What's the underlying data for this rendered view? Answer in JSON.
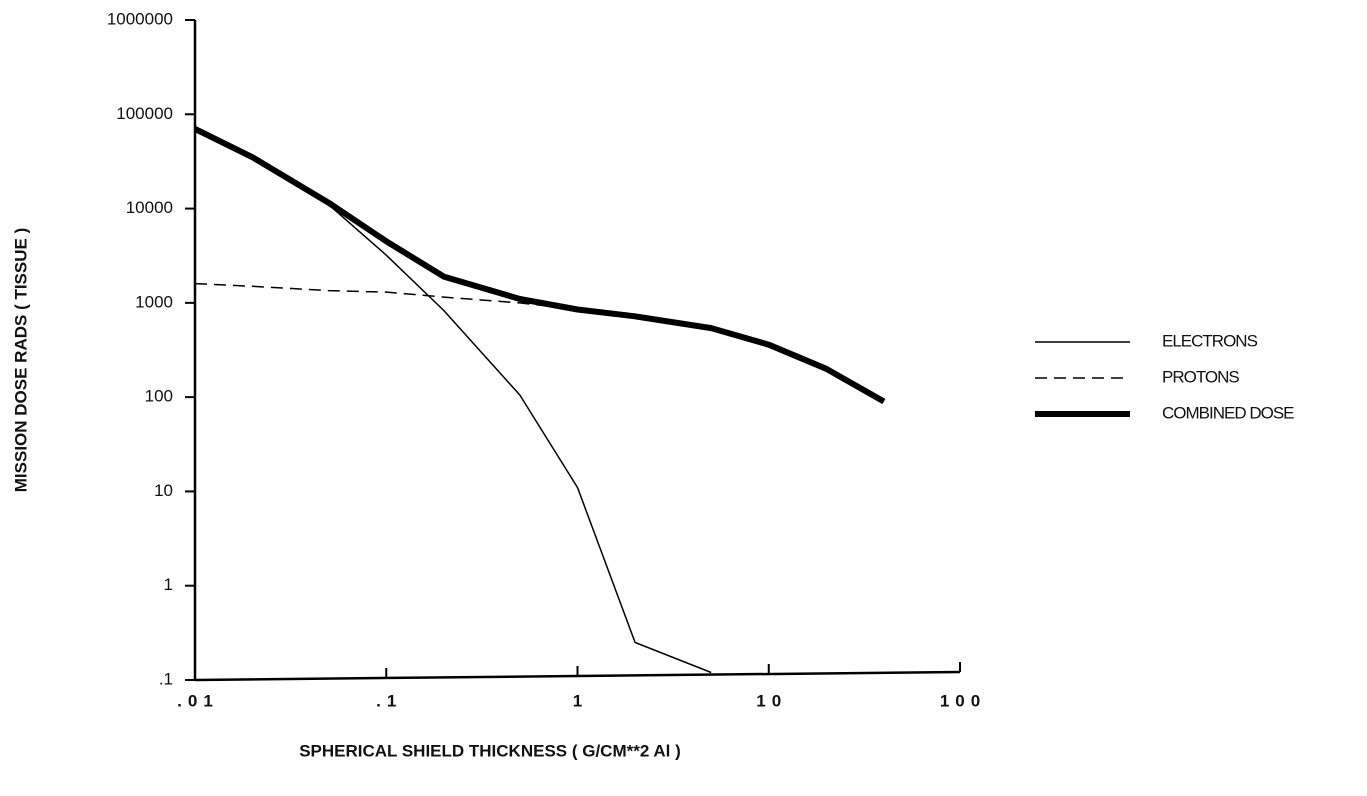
{
  "chart_data": {
    "type": "line",
    "xlabel": "SPHERICAL SHIELD THICKNESS ( G/CM**2 Al )",
    "ylabel": "MISSION DOSE RADS  (  TISSUE  )",
    "x": [
      0.01,
      0.02,
      0.05,
      0.1,
      0.2,
      0.5,
      1,
      2,
      5,
      10,
      20,
      40
    ],
    "series": [
      {
        "name": "ELECTRONS",
        "color": "#000000",
        "line_width": 1.5,
        "dash": false,
        "values": [
          70000,
          35000,
          11000,
          3200,
          830,
          105,
          11,
          0.25,
          0.12,
          null,
          null,
          null
        ]
      },
      {
        "name": "PROTONS",
        "color": "#000000",
        "line_width": 1.5,
        "dash": true,
        "values": [
          1600,
          1500,
          1350,
          1300,
          1150,
          1000,
          850,
          720,
          540,
          360,
          200,
          90
        ]
      },
      {
        "name": "COMBINED DOSE",
        "color": "#000000",
        "line_width": 6,
        "dash": false,
        "values": [
          70000,
          35000,
          11500,
          4500,
          1900,
          1100,
          850,
          720,
          540,
          360,
          200,
          90
        ]
      }
    ],
    "xscale": "log",
    "yscale": "log",
    "xlim": [
      0.01,
      100
    ],
    "ylim": [
      0.1,
      1000000
    ],
    "xticks": [
      {
        "value": 0.01,
        "label": ".01"
      },
      {
        "value": 0.1,
        "label": ".1"
      },
      1,
      10,
      100
    ],
    "yticks": [
      {
        "value": 0.1,
        "label": ".1"
      },
      1,
      10,
      100,
      1000,
      10000,
      100000,
      1000000
    ],
    "grid": false,
    "legend": "right"
  }
}
